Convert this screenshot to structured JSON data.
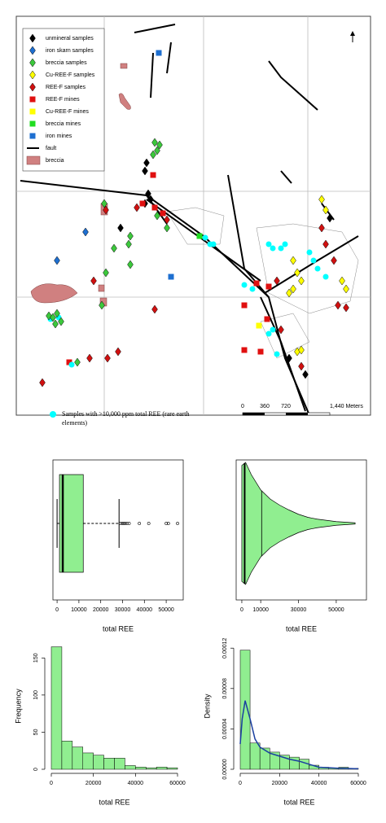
{
  "map": {
    "legend": [
      "unmineral samples",
      "iron skarn samples",
      "breccia samples",
      "Cu-REE-F samples",
      "REE-F samples",
      "REE-F mines",
      "Cu-REE-F mines",
      "breccia mines",
      "iron mines",
      "fault",
      "breccia"
    ],
    "scale": [
      "0",
      "360",
      "720",
      "1,440 Meters"
    ],
    "caption": [
      "Samples with >10,000 ppm total REE (rare earth",
      "elements)"
    ]
  },
  "chart_data": [
    {
      "type": "boxplot",
      "xlabel": "total REE",
      "color": "#90ee90",
      "whisker_low": 0,
      "q1": 1100,
      "median": 2600,
      "q3": 12000,
      "whisker_high": 28400,
      "outliers": [
        29000,
        29800,
        30500,
        31200,
        32000,
        33000,
        37700,
        42000,
        50000,
        51000,
        55200
      ],
      "xlim": [
        -1900,
        57800
      ],
      "xticks": [
        0,
        10000,
        20000,
        30000,
        40000,
        50000
      ]
    },
    {
      "type": "violin",
      "xlabel": "total REE",
      "color": "#90ee90",
      "x": [
        0,
        2000,
        5000,
        10000,
        15000,
        20000,
        25000,
        30000,
        35000,
        40000,
        45000,
        50000,
        55000,
        60000
      ],
      "values": [
        0.95,
        1,
        0.8,
        0.55,
        0.4,
        0.3,
        0.22,
        0.15,
        0.1,
        0.07,
        0.05,
        0.03,
        0.02,
        0.01
      ],
      "lines": [
        1500,
        10500
      ],
      "xlim": [
        -3000,
        66000
      ],
      "xticks": [
        0,
        10000,
        30000,
        50000
      ]
    },
    {
      "type": "histogram",
      "xlabel": "total REE",
      "ylabel": "Frequency",
      "color": "#90ee90",
      "bins": [
        0,
        5000,
        10000,
        15000,
        20000,
        25000,
        30000,
        35000,
        40000,
        45000,
        50000,
        55000,
        60000
      ],
      "values": [
        165,
        38,
        30,
        22,
        19,
        15,
        15,
        5,
        3,
        2,
        3,
        2
      ],
      "xlim": [
        0,
        60000
      ],
      "xticks": [
        0,
        20000,
        40000,
        60000
      ],
      "ylim": [
        0,
        170
      ],
      "yticks": [
        0,
        50,
        100,
        150
      ]
    },
    {
      "type": "histogram",
      "xlabel": "total REE",
      "ylabel": "Density",
      "color": "#90ee90",
      "bins": [
        0,
        5000,
        10000,
        15000,
        20000,
        25000,
        30000,
        35000,
        40000,
        45000,
        50000,
        55000,
        60000
      ],
      "values": [
        0.000118,
        2.6e-05,
        2.1e-05,
        1.7e-05,
        1.4e-05,
        1.2e-05,
        1e-05,
        4e-06,
        2e-06,
        1e-06,
        2e-06,
        1e-06
      ],
      "curve": {
        "color": "#1a3fa0",
        "x": [
          0,
          1000,
          2500,
          5000,
          7500,
          10000,
          15000,
          20000,
          25000,
          30000,
          35000,
          40000,
          50000,
          60000
        ],
        "values": [
          2.5e-05,
          5e-05,
          6.8e-05,
          5e-05,
          3e-05,
          2.2e-05,
          1.6e-05,
          1.3e-05,
          1e-05,
          8e-06,
          5e-06,
          2e-06,
          1e-06,
          5e-07
        ]
      },
      "xlim": [
        0,
        60000
      ],
      "xticks": [
        0,
        20000,
        40000,
        60000
      ],
      "ylim": [
        0,
        0.000125
      ],
      "yticks": [
        {
          "value": 0,
          "label": "0.00000"
        },
        {
          "value": 4e-05,
          "label": "0.00004"
        },
        {
          "value": 8e-05,
          "label": "0.00008"
        },
        {
          "value": 0.00012,
          "label": "0.00012"
        }
      ]
    }
  ]
}
